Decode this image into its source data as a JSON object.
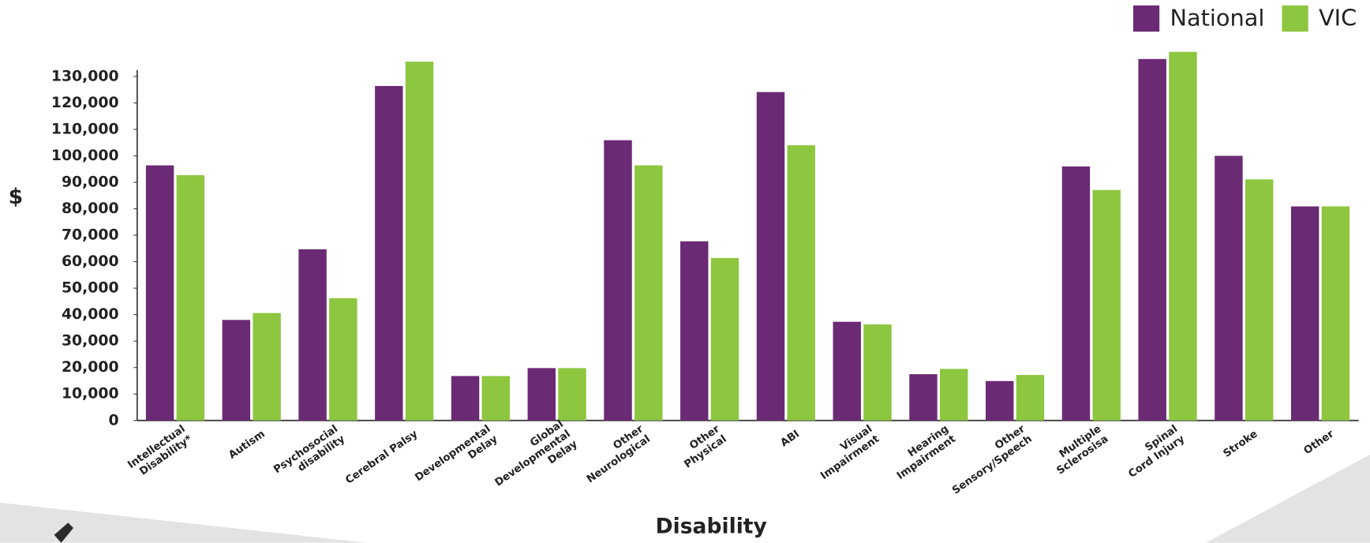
{
  "chart_data": {
    "type": "bar",
    "y_label": "$",
    "x_label": "Disability",
    "categories": [
      "Intellectual\nDisability*",
      "Autism",
      "Psychosocial\ndisability",
      "Cerebral Palsy",
      "Developmental\nDelay",
      "Global\nDevelopmental\nDelay",
      "Other\nNeurological",
      "Other\nPhysical",
      "ABI",
      "Visual\nImpairment",
      "Hearing\nImpairment",
      "Other\nSensory/Speech",
      "Multiple\nSclerosisa",
      "Spinal\nCord Injury",
      "Stroke",
      "Other"
    ],
    "series": [
      {
        "name": "National",
        "color": "#6b2a74",
        "values": [
          96400,
          38000,
          64700,
          126400,
          16800,
          19800,
          105900,
          67700,
          124100,
          37300,
          17500,
          14900,
          96000,
          136600,
          100000,
          80900
        ]
      },
      {
        "name": "VIC",
        "color": "#8dc63f",
        "values": [
          92700,
          40600,
          46200,
          135600,
          16800,
          19800,
          96400,
          61400,
          104000,
          36300,
          19500,
          17200,
          87100,
          139300,
          91100,
          80900
        ]
      }
    ],
    "ylim": [
      0,
      140000
    ],
    "yticks": [
      0,
      {
        "value": 10000,
        "label": "10,000"
      },
      {
        "value": 20000,
        "label": "20,000"
      },
      {
        "value": 30000,
        "label": "30,000"
      },
      {
        "value": 40000,
        "label": "40,000"
      },
      {
        "value": 50000,
        "label": "50,000"
      },
      {
        "value": 60000,
        "label": "60,000"
      },
      {
        "value": 70000,
        "label": "70,000"
      },
      {
        "value": 80000,
        "label": "80,000"
      },
      {
        "value": 90000,
        "label": "90,000"
      },
      {
        "value": 100000,
        "label": "100,000"
      },
      {
        "value": 110000,
        "label": "110,000"
      },
      {
        "value": 120000,
        "label": "120,000"
      },
      {
        "value": 130000,
        "label": "130,000"
      }
    ],
    "grid": false,
    "legend": "top-right"
  }
}
